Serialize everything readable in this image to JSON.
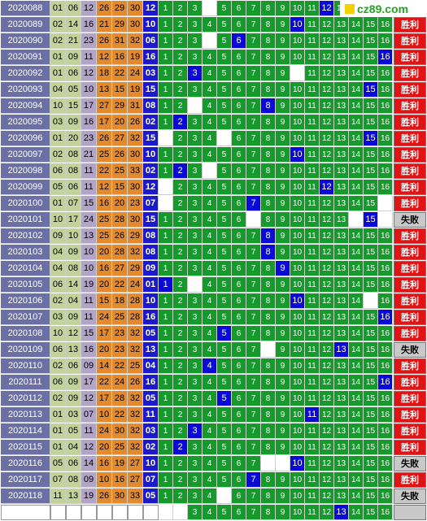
{
  "logo": {
    "text": "cz89.com"
  },
  "result_labels": {
    "win": "胜利",
    "lose": "失败"
  },
  "rows": [
    {
      "issue": "2020088",
      "nums": [
        "01",
        "06",
        "12",
        "26",
        "29",
        "30",
        "12"
      ],
      "hit": 12,
      "miss": [
        4
      ],
      "result": ""
    },
    {
      "issue": "2020089",
      "nums": [
        "02",
        "14",
        "16",
        "21",
        "29",
        "30",
        "10"
      ],
      "hit": 10,
      "miss": [],
      "result": "win"
    },
    {
      "issue": "2020090",
      "nums": [
        "02",
        "21",
        "23",
        "26",
        "31",
        "32",
        "06"
      ],
      "hit": 6,
      "miss": [
        4
      ],
      "result": "win"
    },
    {
      "issue": "2020091",
      "nums": [
        "01",
        "09",
        "11",
        "12",
        "16",
        "19",
        "16"
      ],
      "hit": 16,
      "miss": [],
      "result": "win"
    },
    {
      "issue": "2020092",
      "nums": [
        "01",
        "06",
        "12",
        "18",
        "22",
        "24",
        "03"
      ],
      "hit": 3,
      "miss": [
        10
      ],
      "result": "win"
    },
    {
      "issue": "2020093",
      "nums": [
        "04",
        "05",
        "10",
        "13",
        "15",
        "19",
        "15"
      ],
      "hit": 15,
      "miss": [],
      "result": "win"
    },
    {
      "issue": "2020094",
      "nums": [
        "10",
        "15",
        "17",
        "27",
        "29",
        "31",
        "08"
      ],
      "hit": 8,
      "miss": [
        3
      ],
      "result": "win"
    },
    {
      "issue": "2020095",
      "nums": [
        "03",
        "09",
        "16",
        "17",
        "20",
        "26",
        "02"
      ],
      "hit": 2,
      "miss": [],
      "result": "win"
    },
    {
      "issue": "2020096",
      "nums": [
        "01",
        "20",
        "23",
        "26",
        "27",
        "32",
        "15"
      ],
      "hit": 15,
      "miss": [
        1,
        5
      ],
      "result": "win"
    },
    {
      "issue": "2020097",
      "nums": [
        "02",
        "08",
        "21",
        "25",
        "26",
        "30",
        "10"
      ],
      "hit": 10,
      "miss": [],
      "result": "win"
    },
    {
      "issue": "2020098",
      "nums": [
        "06",
        "08",
        "11",
        "22",
        "25",
        "33",
        "02"
      ],
      "hit": 2,
      "miss": [
        4
      ],
      "result": "win"
    },
    {
      "issue": "2020099",
      "nums": [
        "05",
        "06",
        "11",
        "12",
        "15",
        "30",
        "12"
      ],
      "hit": 12,
      "miss": [
        1
      ],
      "result": "win"
    },
    {
      "issue": "2020100",
      "nums": [
        "01",
        "07",
        "15",
        "16",
        "20",
        "23",
        "07"
      ],
      "hit": 7,
      "miss": [
        1,
        16
      ],
      "result": "win"
    },
    {
      "issue": "2020101",
      "nums": [
        "10",
        "17",
        "24",
        "25",
        "28",
        "30",
        "15"
      ],
      "hit": 15,
      "miss": [
        7,
        14,
        15,
        16
      ],
      "result": "lose"
    },
    {
      "issue": "2020102",
      "nums": [
        "09",
        "10",
        "13",
        "25",
        "26",
        "29",
        "08"
      ],
      "hit": 8,
      "miss": [],
      "result": "win"
    },
    {
      "issue": "2020103",
      "nums": [
        "04",
        "09",
        "10",
        "20",
        "28",
        "32",
        "08"
      ],
      "hit": 8,
      "miss": [],
      "result": "win"
    },
    {
      "issue": "2020104",
      "nums": [
        "04",
        "08",
        "10",
        "16",
        "27",
        "29",
        "09"
      ],
      "hit": 9,
      "miss": [],
      "result": "win"
    },
    {
      "issue": "2020105",
      "nums": [
        "06",
        "14",
        "19",
        "20",
        "22",
        "24",
        "01"
      ],
      "hit": 1,
      "miss": [
        3
      ],
      "result": "win"
    },
    {
      "issue": "2020106",
      "nums": [
        "02",
        "04",
        "11",
        "15",
        "18",
        "28",
        "10"
      ],
      "hit": 10,
      "miss": [
        15
      ],
      "result": "win"
    },
    {
      "issue": "2020107",
      "nums": [
        "03",
        "09",
        "11",
        "24",
        "25",
        "28",
        "16"
      ],
      "hit": 16,
      "miss": [],
      "result": "win"
    },
    {
      "issue": "2020108",
      "nums": [
        "10",
        "12",
        "15",
        "17",
        "23",
        "32",
        "05"
      ],
      "hit": 5,
      "miss": [],
      "result": "win"
    },
    {
      "issue": "2020109",
      "nums": [
        "06",
        "13",
        "16",
        "20",
        "23",
        "32",
        "13"
      ],
      "hit": 13,
      "miss": [
        8
      ],
      "result": "lose"
    },
    {
      "issue": "2020110",
      "nums": [
        "02",
        "06",
        "09",
        "14",
        "22",
        "25",
        "04"
      ],
      "hit": 4,
      "miss": [],
      "result": "win"
    },
    {
      "issue": "2020111",
      "nums": [
        "06",
        "09",
        "17",
        "22",
        "24",
        "26",
        "16"
      ],
      "hit": 16,
      "miss": [],
      "result": "win"
    },
    {
      "issue": "2020112",
      "nums": [
        "02",
        "09",
        "12",
        "17",
        "28",
        "32",
        "05"
      ],
      "hit": 5,
      "miss": [],
      "result": "win"
    },
    {
      "issue": "2020113",
      "nums": [
        "01",
        "03",
        "07",
        "10",
        "22",
        "32",
        "11"
      ],
      "hit": 11,
      "miss": [],
      "result": "win"
    },
    {
      "issue": "2020114",
      "nums": [
        "01",
        "05",
        "11",
        "24",
        "30",
        "32",
        "03"
      ],
      "hit": 3,
      "miss": [],
      "result": "win"
    },
    {
      "issue": "2020115",
      "nums": [
        "01",
        "04",
        "12",
        "20",
        "25",
        "32",
        "02"
      ],
      "hit": 2,
      "miss": [],
      "result": "win"
    },
    {
      "issue": "2020116",
      "nums": [
        "05",
        "06",
        "14",
        "16",
        "19",
        "27",
        "10"
      ],
      "hit": 10,
      "miss": [
        8,
        9
      ],
      "result": "lose"
    },
    {
      "issue": "2020117",
      "nums": [
        "07",
        "08",
        "09",
        "10",
        "16",
        "27",
        "07"
      ],
      "hit": 7,
      "miss": [],
      "result": "win"
    },
    {
      "issue": "2020118",
      "nums": [
        "11",
        "13",
        "19",
        "26",
        "30",
        "33",
        "05"
      ],
      "hit": 0,
      "miss": [
        5
      ],
      "result": "lose"
    },
    {
      "issue": "",
      "nums": [
        "",
        "",
        "",
        "",
        "",
        "",
        ""
      ],
      "hit": 13,
      "miss": [
        1,
        2
      ],
      "result": "blank"
    }
  ]
}
